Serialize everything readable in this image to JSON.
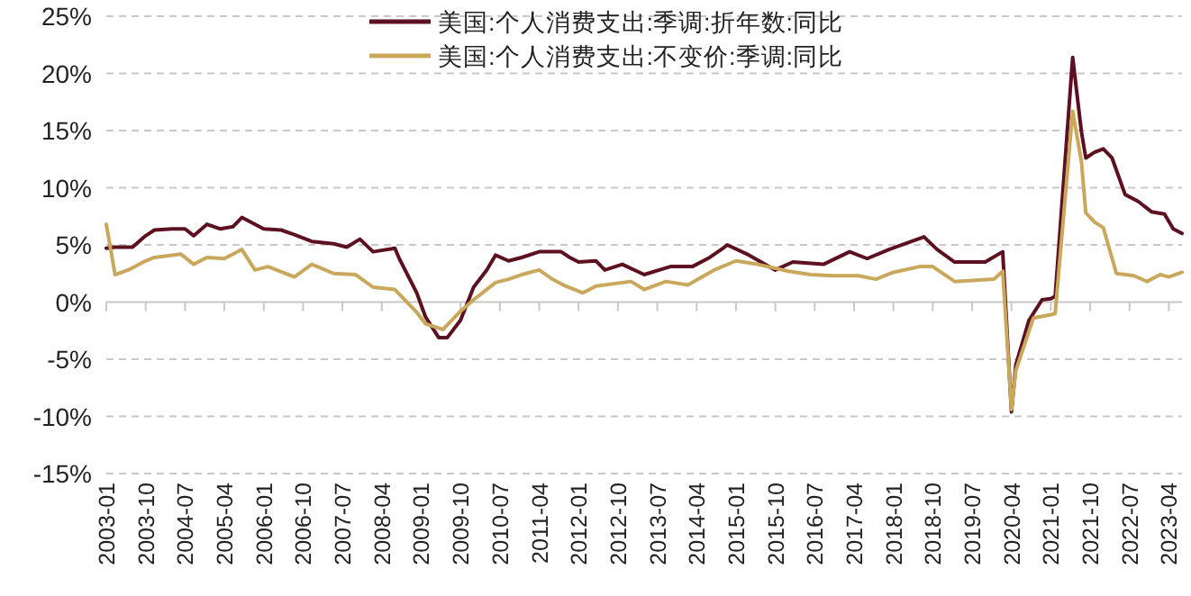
{
  "chart_data": {
    "type": "line",
    "xlim": [
      "2003-01",
      "2023-07"
    ],
    "ylim": [
      -15,
      25
    ],
    "xticks": [
      "2003-01",
      "2003-10",
      "2004-07",
      "2005-04",
      "2006-01",
      "2006-10",
      "2007-07",
      "2008-04",
      "2009-01",
      "2009-10",
      "2010-07",
      "2011-04",
      "2012-01",
      "2012-10",
      "2013-07",
      "2014-04",
      "2015-01",
      "2015-10",
      "2016-07",
      "2017-04",
      "2018-01",
      "2018-10",
      "2019-07",
      "2020-04",
      "2021-01",
      "2021-10",
      "2022-07",
      "2023-04"
    ],
    "yticks": [
      {
        "value": -15,
        "label": "-15%"
      },
      {
        "value": -10,
        "label": "-10%"
      },
      {
        "value": -5,
        "label": "-5%"
      },
      {
        "value": 0,
        "label": "0%"
      },
      {
        "value": 5,
        "label": "5%"
      },
      {
        "value": 10,
        "label": "10%"
      },
      {
        "value": 15,
        "label": "15%"
      },
      {
        "value": 20,
        "label": "20%"
      },
      {
        "value": 25,
        "label": "25%"
      }
    ],
    "grid": "y",
    "legend": "top",
    "marker": "none",
    "series": [
      {
        "name": "美国:个人消费支出:季调:折年数:同比",
        "color": "#5c1020",
        "x": [
          "2003-01",
          "2003-03",
          "2003-07",
          "2003-10",
          "2003-12",
          "2004-04",
          "2004-07",
          "2004-09",
          "2004-12",
          "2005-03",
          "2005-06",
          "2005-08",
          "2006-01",
          "2006-05",
          "2006-08",
          "2006-12",
          "2007-05",
          "2007-08",
          "2007-11",
          "2008-02",
          "2008-07",
          "2008-08",
          "2008-12",
          "2009-02",
          "2009-05",
          "2009-07",
          "2009-10",
          "2010-01",
          "2010-04",
          "2010-06",
          "2010-09",
          "2010-12",
          "2011-04",
          "2011-09",
          "2011-11",
          "2012-01",
          "2012-05",
          "2012-07",
          "2012-11",
          "2013-04",
          "2013-10",
          "2014-03",
          "2014-07",
          "2014-10",
          "2014-11",
          "2015-04",
          "2015-10",
          "2016-02",
          "2016-09",
          "2017-03",
          "2017-07",
          "2017-12",
          "2018-08",
          "2018-11",
          "2019-03",
          "2019-10",
          "2020-02",
          "2020-04",
          "2020-05",
          "2020-08",
          "2020-11",
          "2021-01",
          "2021-02",
          "2021-06",
          "2021-08",
          "2021-09",
          "2021-11",
          "2022-01",
          "2022-03",
          "2022-06",
          "2022-09",
          "2022-12",
          "2023-03",
          "2023-05",
          "2023-07"
        ],
        "values": [
          4.7,
          4.8,
          4.8,
          5.8,
          6.3,
          6.4,
          6.4,
          5.8,
          6.8,
          6.4,
          6.6,
          7.4,
          6.4,
          6.3,
          5.9,
          5.3,
          5.1,
          4.8,
          5.5,
          4.4,
          4.7,
          3.8,
          0.8,
          -1.3,
          -3.1,
          -3.1,
          -1.6,
          1.3,
          2.8,
          4.1,
          3.6,
          3.9,
          4.4,
          4.4,
          3.9,
          3.5,
          3.6,
          2.8,
          3.3,
          2.4,
          3.1,
          3.1,
          3.9,
          4.7,
          5.0,
          4.1,
          2.8,
          3.5,
          3.3,
          4.4,
          3.8,
          4.6,
          5.7,
          4.6,
          3.5,
          3.5,
          4.4,
          -9.6,
          -5.5,
          -1.6,
          0.2,
          0.3,
          0.5,
          21.4,
          14.9,
          12.6,
          13.1,
          13.4,
          12.6,
          9.4,
          8.8,
          7.9,
          7.7,
          6.4,
          6.0
        ]
      },
      {
        "name": "美国:个人消费支出:不变价:季调:同比",
        "color": "#c9a85c",
        "x": [
          "2003-01",
          "2003-03",
          "2003-06",
          "2003-10",
          "2003-12",
          "2004-04",
          "2004-06",
          "2004-09",
          "2004-12",
          "2005-04",
          "2005-08",
          "2005-11",
          "2006-02",
          "2006-08",
          "2006-12",
          "2007-05",
          "2007-10",
          "2008-02",
          "2008-07",
          "2008-12",
          "2009-02",
          "2009-06",
          "2009-10",
          "2010-01",
          "2010-03",
          "2010-06",
          "2010-09",
          "2010-12",
          "2011-04",
          "2011-07",
          "2011-10",
          "2012-02",
          "2012-05",
          "2013-01",
          "2013-04",
          "2013-09",
          "2014-02",
          "2014-08",
          "2015-01",
          "2015-06",
          "2016-01",
          "2016-06",
          "2016-11",
          "2017-05",
          "2017-09",
          "2018-01",
          "2018-07",
          "2018-10",
          "2019-03",
          "2019-12",
          "2020-02",
          "2020-04",
          "2020-05",
          "2020-09",
          "2021-01",
          "2021-02",
          "2021-06",
          "2021-08",
          "2021-09",
          "2021-11",
          "2022-01",
          "2022-04",
          "2022-08",
          "2022-11",
          "2023-02",
          "2023-04",
          "2023-07"
        ],
        "values": [
          6.8,
          2.4,
          2.8,
          3.6,
          3.9,
          4.1,
          4.2,
          3.3,
          3.9,
          3.8,
          4.6,
          2.8,
          3.1,
          2.2,
          3.3,
          2.5,
          2.4,
          1.3,
          1.1,
          -0.9,
          -1.9,
          -2.4,
          -0.8,
          0.2,
          0.8,
          1.7,
          2.0,
          2.4,
          2.8,
          2.0,
          1.4,
          0.8,
          1.4,
          1.8,
          1.1,
          1.8,
          1.5,
          2.8,
          3.6,
          3.3,
          2.7,
          2.4,
          2.3,
          2.3,
          2.0,
          2.6,
          3.1,
          3.1,
          1.8,
          2.0,
          2.7,
          -9.4,
          -6.0,
          -1.4,
          -1.1,
          -1.0,
          16.7,
          12.3,
          7.8,
          7.0,
          6.5,
          2.5,
          2.3,
          1.8,
          2.4,
          2.2,
          2.6
        ]
      }
    ]
  }
}
